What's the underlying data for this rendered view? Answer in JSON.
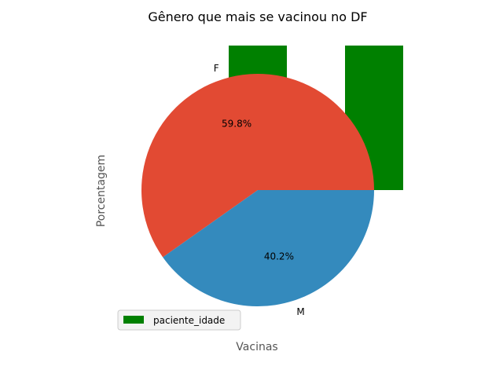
{
  "chart_data": [
    {
      "type": "bar",
      "title": "Gênero que mais se vacinou no  DF",
      "xlabel": "Vacinas",
      "ylabel": "Porcentagem",
      "series": [
        {
          "name": "paciente_idade",
          "color": "#008000"
        }
      ],
      "legend_position": "lower-left"
    },
    {
      "type": "pie",
      "labels": [
        "F",
        "M"
      ],
      "values": [
        59.8,
        40.2
      ],
      "autopct_labels": [
        "59.8%",
        "40.2%"
      ],
      "colors": [
        "#E24A33",
        "#348ABD"
      ]
    }
  ]
}
